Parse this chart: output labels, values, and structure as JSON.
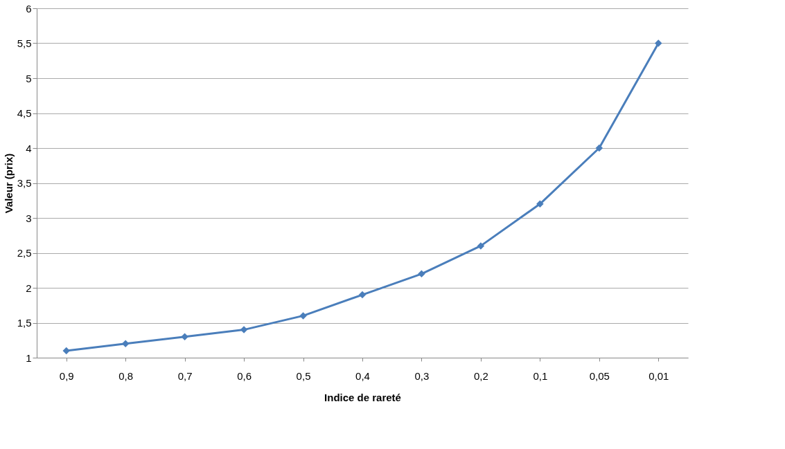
{
  "chart_data": {
    "type": "line",
    "xlabel": "Indice de rareté",
    "ylabel": "Valeur (prix)",
    "categories": [
      "0,9",
      "0,8",
      "0,7",
      "0,6",
      "0,5",
      "0,4",
      "0,3",
      "0,2",
      "0,1",
      "0,05",
      "0,01"
    ],
    "series": [
      {
        "color": "#4a7ebb",
        "values": [
          1.1,
          1.2,
          1.3,
          1.4,
          1.6,
          1.9,
          2.2,
          2.6,
          3.2,
          4.0,
          5.5
        ]
      }
    ],
    "ylim": [
      1,
      6
    ],
    "yticks": [
      1,
      {
        "value": 1.5,
        "label": "1,5"
      },
      2,
      {
        "value": 2.5,
        "label": "2,5"
      },
      3,
      {
        "value": 3.5,
        "label": "3,5"
      },
      4,
      {
        "value": 4.5,
        "label": "4,5"
      },
      5,
      {
        "value": 5.5,
        "label": "5,5"
      },
      6
    ],
    "grid": "y",
    "legend": false,
    "marker": "diamond",
    "line_style": "solid"
  }
}
